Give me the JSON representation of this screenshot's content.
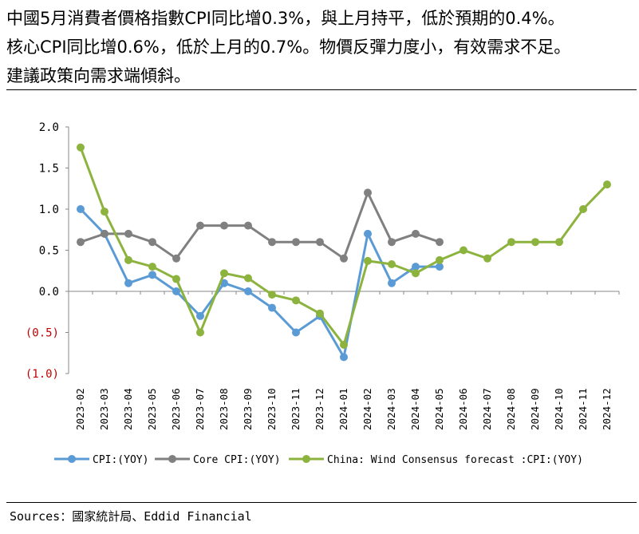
{
  "headline": {
    "lines": [
      "中國5月消費者價格指數CPI同比增0.3%，與上月持平，低於預期的0.4%。",
      "核心CPI同比增0.6%，低於上月的0.7%。物價反彈力度小，有效需求不足。",
      "建議政策向需求端傾斜。"
    ]
  },
  "source": "Sources：國家統計局、Eddid Financial",
  "chart_data": {
    "type": "line",
    "categories": [
      "2023-02",
      "2023-03",
      "2023-04",
      "2023-05",
      "2023-06",
      "2023-07",
      "2023-08",
      "2023-09",
      "2023-10",
      "2023-11",
      "2023-12",
      "2024-01",
      "2024-02",
      "2024-03",
      "2024-04",
      "2024-05",
      "2024-06",
      "2024-07",
      "2024-08",
      "2024-09",
      "2024-10",
      "2024-11",
      "2024-12"
    ],
    "ylim": [
      -1.0,
      2.0
    ],
    "yticks": [
      2.0,
      1.5,
      1.0,
      0.5,
      0.0,
      -0.5,
      -1.0
    ],
    "ytick_labels": [
      "2.0",
      "1.5",
      "1.0",
      "0.5",
      "0.0",
      "(0.5)",
      "(1.0)"
    ],
    "negative_tick_color": "#c00000",
    "grid": false,
    "legend_position": "bottom",
    "series": [
      {
        "name": "CPI:(YOY)",
        "color": "#5b9bd5",
        "values": [
          1.0,
          0.7,
          0.1,
          0.2,
          0.0,
          -0.3,
          0.1,
          0.0,
          -0.2,
          -0.5,
          -0.3,
          -0.8,
          0.7,
          0.1,
          0.3,
          0.3,
          null,
          null,
          null,
          null,
          null,
          null,
          null
        ]
      },
      {
        "name": "Core CPI:(YOY)",
        "color": "#808080",
        "values": [
          0.6,
          0.7,
          0.7,
          0.6,
          0.4,
          0.8,
          0.8,
          0.8,
          0.6,
          0.6,
          0.6,
          0.4,
          1.2,
          0.6,
          0.7,
          0.6,
          null,
          null,
          null,
          null,
          null,
          null,
          null
        ]
      },
      {
        "name": "China: Wind Consensus forecast :CPI:(YOY)",
        "color": "#8db33f",
        "values": [
          1.75,
          0.97,
          0.38,
          0.3,
          0.15,
          -0.5,
          0.22,
          0.16,
          -0.04,
          -0.11,
          -0.27,
          -0.65,
          0.37,
          0.33,
          0.22,
          0.38,
          0.5,
          0.4,
          0.6,
          0.6,
          0.6,
          1.0,
          1.3
        ]
      }
    ]
  }
}
